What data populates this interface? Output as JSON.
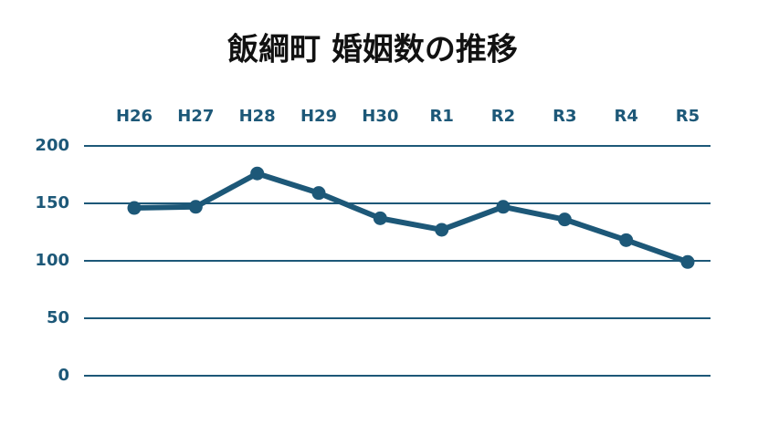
{
  "chart_data": {
    "type": "line",
    "title": "飯綱町 婚姻数の推移",
    "categories": [
      "H26",
      "H27",
      "H28",
      "H29",
      "H30",
      "R1",
      "R2",
      "R3",
      "R4",
      "R5"
    ],
    "series": [
      {
        "name": "婚姻数",
        "color": "#1d5878",
        "values": [
          146,
          147,
          176,
          159,
          137,
          127,
          147,
          136,
          118,
          99
        ]
      }
    ],
    "ylim": [
      0,
      200
    ],
    "yticks": [
      0,
      50,
      100,
      150,
      200
    ],
    "grid": true
  }
}
